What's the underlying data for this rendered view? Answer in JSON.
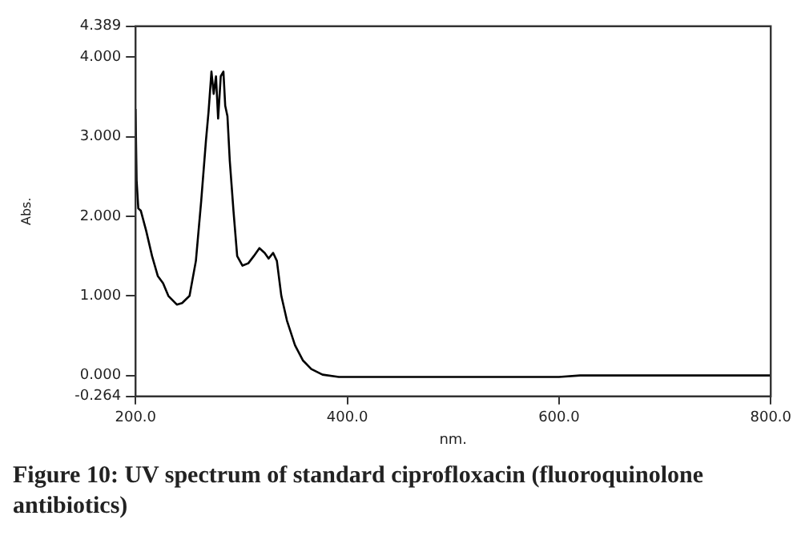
{
  "chart_data": {
    "type": "line",
    "title": "Figure 10: UV spectrum of standard ciprofloxacin (fluoroquinolone antibiotics)",
    "xlabel": "nm.",
    "ylabel": "Abs.",
    "x": [
      200,
      201,
      202.6,
      205,
      210,
      215.6,
      221,
      226,
      231,
      239,
      244,
      251,
      257,
      262,
      266.5,
      269,
      271.7,
      273.8,
      276,
      278,
      280.5,
      283,
      284.7,
      286.8,
      289,
      292.5,
      296,
      301,
      306.5,
      311.7,
      317,
      322,
      325.7,
      330,
      333.5,
      337.7,
      343,
      350.6,
      358,
      366,
      376.6,
      392,
      418,
      500,
      600,
      620,
      700,
      800
    ],
    "series": [
      {
        "color": "#000000",
        "values": [
          3.35,
          2.45,
          2.1,
          2.07,
          1.82,
          1.5,
          1.25,
          1.16,
          1.0,
          0.89,
          0.91,
          1.0,
          1.44,
          2.19,
          2.95,
          3.32,
          3.82,
          3.54,
          3.76,
          3.23,
          3.76,
          3.82,
          3.39,
          3.26,
          2.7,
          2.07,
          1.5,
          1.38,
          1.41,
          1.5,
          1.6,
          1.54,
          1.47,
          1.54,
          1.44,
          1.0,
          0.69,
          0.38,
          0.19,
          0.08,
          0.01,
          -0.02,
          -0.02,
          -0.02,
          -0.02,
          0.0,
          0.0,
          0.0
        ]
      }
    ],
    "xlim": [
      200,
      800
    ],
    "xticks": [
      {
        "value": 200,
        "label": "200.0"
      },
      {
        "value": 400,
        "label": "400.0"
      },
      {
        "value": 600,
        "label": "600.0"
      },
      {
        "value": 800,
        "label": "800.0"
      }
    ],
    "ylim": [
      -0.264,
      4.389
    ],
    "yticks": [
      -0.264,
      {
        "value": 0,
        "label": "0.000"
      },
      {
        "value": 1,
        "label": "1.000"
      },
      {
        "value": 2,
        "label": "2.000"
      },
      {
        "value": 3,
        "label": "3.000"
      },
      {
        "value": 4,
        "label": "4.000"
      },
      4.389
    ],
    "grid": false,
    "legend": false,
    "marker": "none",
    "line_style": "solid"
  }
}
